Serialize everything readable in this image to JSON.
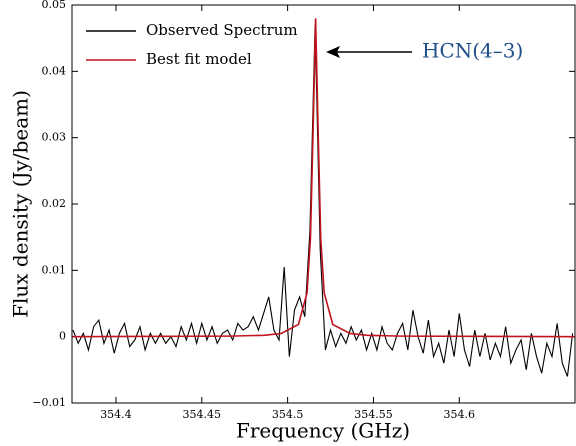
{
  "chart_data": {
    "type": "line",
    "xlabel": "Frequency (GHz)",
    "ylabel": "Flux density (Jy/beam)",
    "annotation": "HCN(4–3)",
    "annotation_color": "#1f4e8c",
    "legend": "upper left",
    "xlim": [
      354.3744,
      354.6674
    ],
    "ylim": [
      -0.01,
      0.05
    ],
    "xticks": [
      354.4,
      354.45,
      354.5,
      354.55,
      354.6
    ],
    "yticks": [
      {
        "value": -0.01,
        "label": "−0.01"
      },
      0,
      0.01,
      0.02,
      0.03,
      0.04,
      0.05
    ],
    "series": [
      {
        "name": "Observed Spectrum",
        "color": "#000000",
        "x": [
          354.375,
          354.378,
          354.381,
          354.384,
          354.387,
          354.39,
          354.393,
          354.396,
          354.399,
          354.402,
          354.405,
          354.408,
          354.411,
          354.414,
          354.417,
          354.42,
          354.423,
          354.426,
          354.429,
          354.432,
          354.435,
          354.438,
          354.441,
          354.444,
          354.447,
          354.45,
          354.453,
          354.456,
          354.459,
          354.462,
          354.465,
          354.468,
          354.471,
          354.474,
          354.477,
          354.48,
          354.483,
          354.486,
          354.489,
          354.492,
          354.495,
          354.498,
          354.501,
          354.504,
          354.507,
          354.51,
          354.513,
          354.516,
          354.519,
          354.522,
          354.525,
          354.528,
          354.531,
          354.534,
          354.537,
          354.54,
          354.543,
          354.546,
          354.549,
          354.552,
          354.555,
          354.558,
          354.561,
          354.564,
          354.567,
          354.57,
          354.573,
          354.576,
          354.579,
          354.582,
          354.585,
          354.588,
          354.591,
          354.594,
          354.597,
          354.6,
          354.603,
          354.606,
          354.609,
          354.612,
          354.615,
          354.618,
          354.621,
          354.624,
          354.627,
          354.63,
          354.633,
          354.636,
          354.639,
          354.642,
          354.645,
          354.648,
          354.651,
          354.654,
          354.657,
          354.66,
          354.663,
          354.666
        ],
        "values": [
          0.001,
          -0.001,
          0.0005,
          -0.002,
          0.0015,
          0.0025,
          -0.001,
          0.001,
          -0.0025,
          0.0005,
          0.002,
          -0.0015,
          -0.0005,
          0.0015,
          -0.002,
          0.0005,
          -0.001,
          0.0005,
          -0.001,
          0,
          -0.0015,
          0.0015,
          -0.0005,
          0.002,
          -0.001,
          0.002,
          -0.0005,
          0.0015,
          -0.001,
          0.0005,
          0.001,
          -0.0005,
          0.002,
          0.001,
          0.0015,
          0.003,
          0.001,
          0.0035,
          0.006,
          0.001,
          -0.0005,
          0.0105,
          -0.003,
          0.004,
          0.006,
          0.003,
          0.016,
          0.047,
          0.013,
          -0.002,
          0.001,
          -0.0015,
          0.0005,
          -0.001,
          0.0015,
          -0.0005,
          0.001,
          -0.002,
          0.0005,
          -0.002,
          0.0015,
          -0.001,
          -0.002,
          0.0005,
          0.002,
          -0.002,
          0.004,
          0,
          -0.0025,
          0.0025,
          -0.003,
          -0.001,
          -0.004,
          0.001,
          -0.003,
          0.0035,
          -0.002,
          -0.0045,
          0.001,
          -0.003,
          0.0005,
          -0.0035,
          -0.001,
          -0.003,
          0.0015,
          -0.004,
          -0.002,
          -0.0005,
          -0.005,
          0.0005,
          -0.003,
          -0.0055,
          -0.001,
          -0.003,
          0.002,
          -0.004,
          -0.006,
          0.0005
        ]
      },
      {
        "name": "Best fit model",
        "color": "#c0141e",
        "x": [
          354.3744,
          354.4663,
          354.4863,
          354.4963,
          354.5063,
          354.5113,
          354.5133,
          354.5148,
          354.5163,
          354.5178,
          354.5193,
          354.5213,
          354.5263,
          354.5363,
          354.5463,
          354.5663,
          354.6674
        ],
        "values": [
          0,
          8e-05,
          0.00021,
          0.00048,
          0.00185,
          0.0066,
          0.0148,
          0.0307,
          0.048,
          0.0307,
          0.0148,
          0.0066,
          0.00185,
          0.00048,
          0.00021,
          8e-05,
          0
        ]
      }
    ]
  }
}
